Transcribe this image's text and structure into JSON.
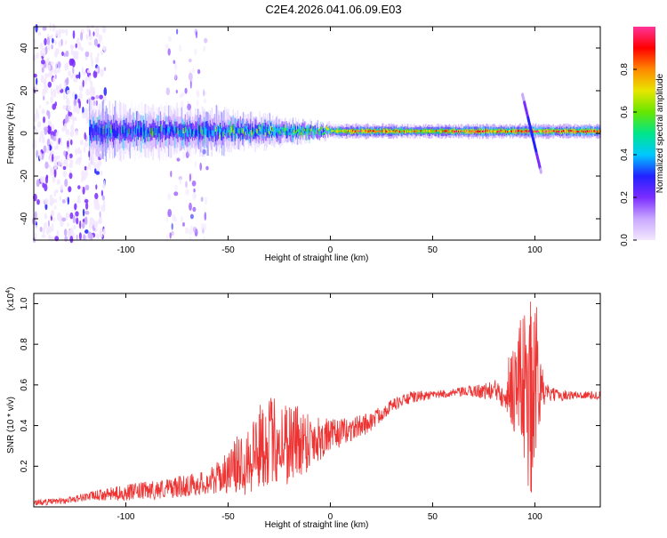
{
  "title": "C2E4.2026.041.06.09.E03",
  "colors": {
    "snr_line": "#ee3333",
    "background": "#ffffff",
    "colormap": [
      "#f3e8ff",
      "#c9a8ff",
      "#7b2cff",
      "#2222ff",
      "#00c8ff",
      "#00e68a",
      "#66e600",
      "#e8e600",
      "#ff8800",
      "#ff0000",
      "#ff3399"
    ]
  },
  "chart_data": [
    {
      "type": "heatmap",
      "name": "spectrogram",
      "xlabel": "Height of straight line (km)",
      "ylabel": "Frequency (Hz)",
      "xlim": [
        -145,
        132
      ],
      "ylim": [
        -50,
        50
      ],
      "x_ticks": [
        -100,
        -50,
        0,
        50,
        100
      ],
      "x_tick_labels": [
        "-100",
        "-50",
        "0",
        "50",
        "100"
      ],
      "y_ticks": [
        -40,
        -20,
        0,
        20,
        40
      ],
      "y_tick_labels": [
        "-40",
        "-20",
        "0",
        "20",
        "40"
      ],
      "colorbar": {
        "label": "Normalized spectral amplitude",
        "range": [
          0,
          1
        ],
        "ticks": [
          0.0,
          0.2,
          0.4,
          0.6,
          0.8
        ],
        "tick_labels": [
          "0.0",
          "0.2",
          "0.4",
          "0.6",
          "0.8"
        ]
      },
      "features": {
        "carrier_freq_hz": 1,
        "band_halfwidth_hz": [
          [
            -145,
            25
          ],
          [
            -110,
            12
          ],
          [
            -60,
            10
          ],
          [
            -10,
            4
          ],
          [
            0,
            3
          ],
          [
            132,
            3
          ]
        ],
        "band_peak_amplitude": [
          [
            -145,
            0.35
          ],
          [
            -110,
            0.35
          ],
          [
            -50,
            0.42
          ],
          [
            -20,
            0.5
          ],
          [
            0,
            0.6
          ],
          [
            10,
            0.9
          ],
          [
            50,
            0.75
          ],
          [
            60,
            0.88
          ],
          [
            132,
            0.9
          ]
        ],
        "diffuse_noise_regions_km": [
          [
            -145,
            -110
          ],
          [
            -80,
            -60
          ]
        ],
        "streak_at_km": 98
      }
    },
    {
      "type": "line",
      "name": "snr",
      "xlabel": "Height of straight line (km)",
      "ylabel": "SNR (10 * v/v)",
      "y_scale_note": "(x10",
      "y_scale_exp": "4",
      "xlim": [
        -145,
        132
      ],
      "ylim": [
        0,
        1.05
      ],
      "x_ticks": [
        -100,
        -50,
        0,
        50,
        100
      ],
      "x_tick_labels": [
        "-100",
        "-50",
        "0",
        "50",
        "100"
      ],
      "y_ticks": [
        0.2,
        0.4,
        0.6,
        0.8,
        1.0
      ],
      "y_tick_labels": [
        "0.2",
        "0.4",
        "0.6",
        "0.8",
        "1.0"
      ],
      "series": [
        {
          "name": "SNR",
          "x": [
            -145,
            -130,
            -120,
            -100,
            -80,
            -60,
            -50,
            -40,
            -30,
            -20,
            -10,
            0,
            10,
            20,
            30,
            40,
            50,
            60,
            70,
            80,
            85,
            90,
            95,
            98,
            100,
            103,
            105,
            110,
            120,
            132
          ],
          "y": [
            0.02,
            0.03,
            0.05,
            0.07,
            0.09,
            0.12,
            0.17,
            0.25,
            0.33,
            0.32,
            0.33,
            0.35,
            0.38,
            0.42,
            0.5,
            0.54,
            0.55,
            0.56,
            0.57,
            0.57,
            0.58,
            0.6,
            0.62,
            0.5,
            0.55,
            0.58,
            0.56,
            0.55,
            0.55,
            0.55
          ],
          "noise_amplitude": [
            0.015,
            0.015,
            0.02,
            0.04,
            0.05,
            0.06,
            0.1,
            0.2,
            0.22,
            0.22,
            0.15,
            0.08,
            0.06,
            0.05,
            0.03,
            0.03,
            0.02,
            0.02,
            0.03,
            0.05,
            0.1,
            0.25,
            0.4,
            0.5,
            0.4,
            0.15,
            0.05,
            0.03,
            0.02,
            0.02
          ]
        }
      ]
    }
  ]
}
